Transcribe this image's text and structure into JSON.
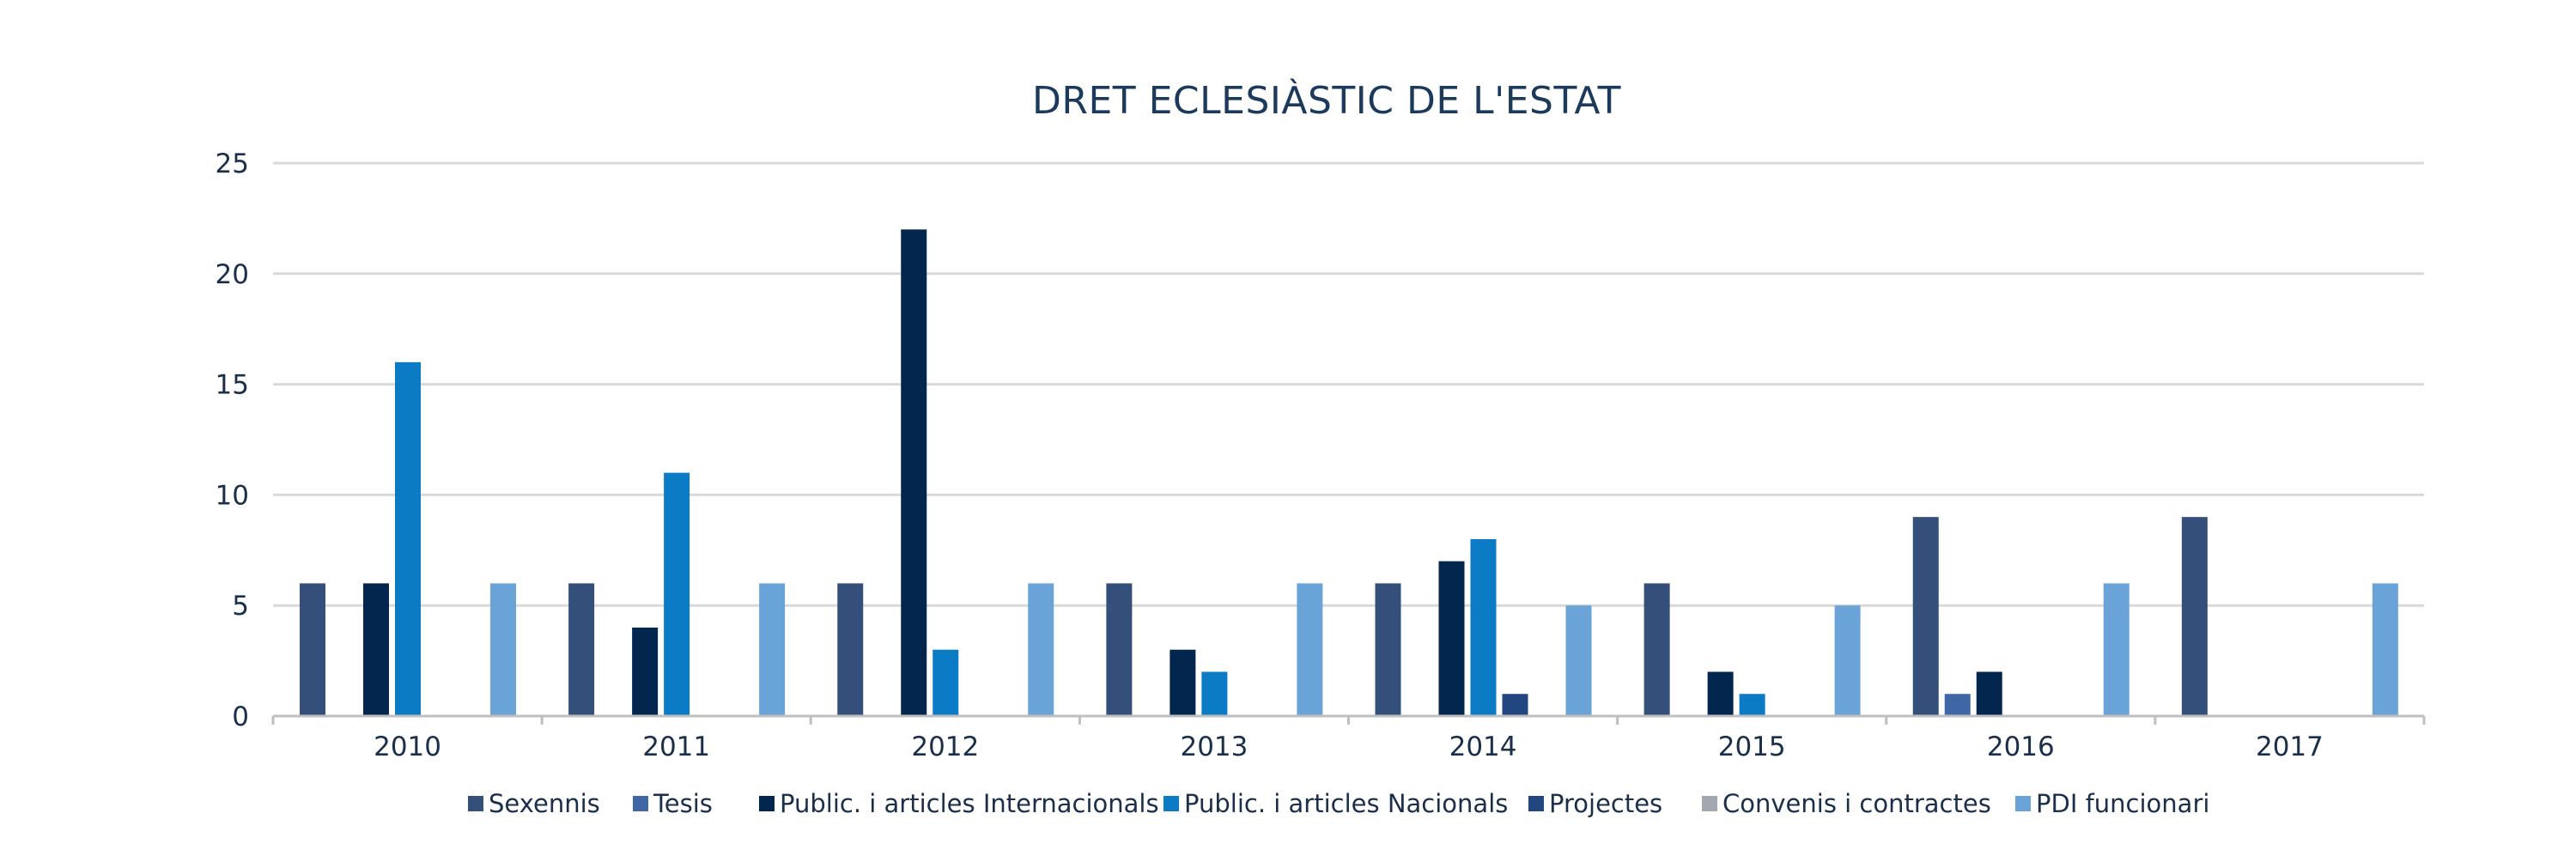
{
  "chart_data": {
    "type": "bar",
    "title": "DRET ECLESIÀSTIC DE L'ESTAT",
    "xlabel": "",
    "ylabel": "",
    "ylim": [
      0,
      25
    ],
    "yticks": [
      0,
      5,
      10,
      15,
      20,
      25
    ],
    "grid": true,
    "legend_position": "bottom",
    "categories": [
      "2010",
      "2011",
      "2012",
      "2013",
      "2014",
      "2015",
      "2016",
      "2017"
    ],
    "series": [
      {
        "name": "Sexennis",
        "color": "#34507a",
        "values": [
          6,
          6,
          6,
          6,
          6,
          6,
          9,
          9
        ]
      },
      {
        "name": "Tesis",
        "color": "#3f67a6",
        "values": [
          0,
          0,
          0,
          0,
          0,
          0,
          1,
          0
        ]
      },
      {
        "name": "Public. i articles Internacionals",
        "color": "#03264f",
        "values": [
          6,
          4,
          22,
          3,
          7,
          2,
          2,
          0
        ]
      },
      {
        "name": "Public. i articles Nacionals",
        "color": "#0a7bc4",
        "values": [
          16,
          11,
          3,
          2,
          8,
          1,
          0,
          0
        ]
      },
      {
        "name": "Projectes",
        "color": "#22467f",
        "values": [
          0,
          0,
          0,
          0,
          1,
          0,
          0,
          0
        ]
      },
      {
        "name": "Convenis i contractes",
        "color": "#a3a8b0",
        "values": [
          0,
          0,
          0,
          0,
          0,
          0,
          0,
          0
        ]
      },
      {
        "name": "PDI funcionari",
        "color": "#6aa3d8",
        "values": [
          6,
          6,
          6,
          6,
          5,
          5,
          6,
          6
        ]
      }
    ]
  }
}
